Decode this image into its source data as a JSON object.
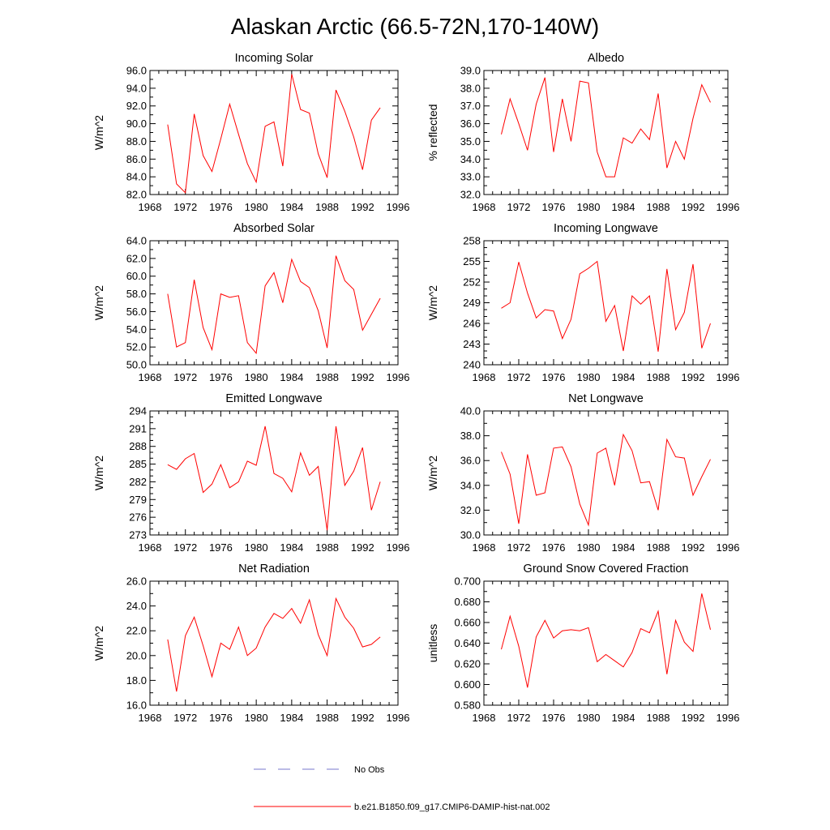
{
  "figure": {
    "title": "Alaskan Arctic (66.5-72N,170-140W)"
  },
  "legend": {
    "items": [
      {
        "label": "No Obs",
        "color": "#7777cc",
        "dashed": true
      },
      {
        "label": "b.e21.B1850.f09_g17.CMIP6-DAMIP-hist-nat.002",
        "color": "#ff0000",
        "dashed": false
      }
    ]
  },
  "chart_data": [
    {
      "type": "line",
      "title": "Incoming Solar",
      "ylabel": "W/m^2",
      "xlim": [
        1968,
        1996
      ],
      "xticks": [
        "1968",
        "1972",
        "1976",
        "1980",
        "1984",
        "1988",
        "1992",
        "1996"
      ],
      "ylim": [
        82,
        96
      ],
      "yticks": [
        "82.0",
        "84.0",
        "86.0",
        "88.0",
        "90.0",
        "92.0",
        "94.0",
        "96.0"
      ],
      "series": [
        {
          "color": "#ff0000",
          "x": [
            1970,
            1971,
            1972,
            1973,
            1974,
            1975,
            1976,
            1977,
            1978,
            1979,
            1980,
            1981,
            1982,
            1983,
            1984,
            1985,
            1986,
            1987,
            1988,
            1989,
            1990,
            1991,
            1992,
            1993,
            1994
          ],
          "y": [
            89.9,
            83.2,
            82.2,
            91.1,
            86.4,
            84.6,
            88.3,
            92.2,
            88.8,
            85.5,
            83.4,
            89.7,
            90.2,
            85.2,
            95.6,
            91.6,
            91.2,
            86.6,
            83.9,
            93.8,
            91.4,
            88.5,
            84.8,
            90.4,
            91.8
          ]
        }
      ]
    },
    {
      "type": "line",
      "title": "Albedo",
      "ylabel": "% reflected",
      "xlim": [
        1968,
        1996
      ],
      "xticks": [
        "1968",
        "1972",
        "1976",
        "1980",
        "1984",
        "1988",
        "1992",
        "1996"
      ],
      "ylim": [
        32,
        39
      ],
      "yticks": [
        "32.0",
        "33.0",
        "34.0",
        "35.0",
        "36.0",
        "37.0",
        "38.0",
        "39.0"
      ],
      "series": [
        {
          "color": "#ff0000",
          "x": [
            1970,
            1971,
            1972,
            1973,
            1974,
            1975,
            1976,
            1977,
            1978,
            1979,
            1980,
            1981,
            1982,
            1983,
            1984,
            1985,
            1986,
            1987,
            1988,
            1989,
            1990,
            1991,
            1992,
            1993,
            1994
          ],
          "y": [
            35.4,
            37.4,
            36.0,
            34.5,
            37.1,
            38.6,
            34.4,
            37.4,
            35.0,
            38.4,
            38.3,
            34.4,
            33.0,
            33.0,
            35.2,
            34.9,
            35.7,
            35.1,
            37.7,
            33.5,
            35.0,
            34.0,
            36.3,
            38.2,
            37.2
          ]
        }
      ]
    },
    {
      "type": "line",
      "title": "Absorbed Solar",
      "ylabel": "W/m^2",
      "xlim": [
        1968,
        1996
      ],
      "xticks": [
        "1968",
        "1972",
        "1976",
        "1980",
        "1984",
        "1988",
        "1992",
        "1996"
      ],
      "ylim": [
        50,
        64
      ],
      "yticks": [
        "50.0",
        "52.0",
        "54.0",
        "56.0",
        "58.0",
        "60.0",
        "62.0",
        "64.0"
      ],
      "series": [
        {
          "color": "#ff0000",
          "x": [
            1970,
            1971,
            1972,
            1973,
            1974,
            1975,
            1976,
            1977,
            1978,
            1979,
            1980,
            1981,
            1982,
            1983,
            1984,
            1985,
            1986,
            1987,
            1988,
            1989,
            1990,
            1991,
            1992,
            1993,
            1994
          ],
          "y": [
            58.0,
            52.0,
            52.5,
            59.6,
            54.2,
            51.7,
            58.0,
            57.6,
            57.8,
            52.5,
            51.3,
            58.9,
            60.4,
            57.0,
            61.9,
            59.4,
            58.7,
            56.1,
            51.9,
            62.3,
            59.5,
            58.5,
            53.9,
            55.7,
            57.5
          ]
        }
      ]
    },
    {
      "type": "line",
      "title": "Incoming Longwave",
      "ylabel": "W/m^2",
      "xlim": [
        1968,
        1996
      ],
      "xticks": [
        "1968",
        "1972",
        "1976",
        "1980",
        "1984",
        "1988",
        "1992",
        "1996"
      ],
      "ylim": [
        240,
        258
      ],
      "yticks": [
        "240",
        "243",
        "246",
        "249",
        "252",
        "255",
        "258"
      ],
      "series": [
        {
          "color": "#ff0000",
          "x": [
            1970,
            1971,
            1972,
            1973,
            1974,
            1975,
            1976,
            1977,
            1978,
            1979,
            1980,
            1981,
            1982,
            1983,
            1984,
            1985,
            1986,
            1987,
            1988,
            1989,
            1990,
            1991,
            1992,
            1993,
            1994
          ],
          "y": [
            248.2,
            249.0,
            254.9,
            250.4,
            246.8,
            248.0,
            247.8,
            243.8,
            246.6,
            253.2,
            254.0,
            255.0,
            246.3,
            248.6,
            242.0,
            250.0,
            248.8,
            250.0,
            241.9,
            253.9,
            245.1,
            247.6,
            254.6,
            242.4,
            246.0
          ]
        }
      ]
    },
    {
      "type": "line",
      "title": "Emitted Longwave",
      "ylabel": "W/m^2",
      "xlim": [
        1968,
        1996
      ],
      "xticks": [
        "1968",
        "1972",
        "1976",
        "1980",
        "1984",
        "1988",
        "1992",
        "1996"
      ],
      "ylim": [
        273,
        294
      ],
      "yticks": [
        "273",
        "276",
        "279",
        "282",
        "285",
        "288",
        "291",
        "294"
      ],
      "series": [
        {
          "color": "#ff0000",
          "x": [
            1970,
            1971,
            1972,
            1973,
            1974,
            1975,
            1976,
            1977,
            1978,
            1979,
            1980,
            1981,
            1982,
            1983,
            1984,
            1985,
            1986,
            1987,
            1988,
            1989,
            1990,
            1991,
            1992,
            1993,
            1994
          ],
          "y": [
            284.9,
            284.1,
            285.9,
            286.8,
            280.2,
            281.6,
            284.9,
            281.0,
            282.0,
            285.5,
            284.8,
            291.4,
            283.4,
            282.6,
            280.3,
            286.9,
            283.1,
            284.6,
            273.8,
            291.4,
            281.4,
            283.8,
            287.8,
            277.2,
            282.0
          ]
        }
      ]
    },
    {
      "type": "line",
      "title": "Net Longwave",
      "ylabel": "W/m^2",
      "xlim": [
        1968,
        1996
      ],
      "xticks": [
        "1968",
        "1972",
        "1976",
        "1980",
        "1984",
        "1988",
        "1992",
        "1996"
      ],
      "ylim": [
        30,
        40
      ],
      "yticks": [
        "30.0",
        "32.0",
        "34.0",
        "36.0",
        "38.0",
        "40.0"
      ],
      "series": [
        {
          "color": "#ff0000",
          "x": [
            1970,
            1971,
            1972,
            1973,
            1974,
            1975,
            1976,
            1977,
            1978,
            1979,
            1980,
            1981,
            1982,
            1983,
            1984,
            1985,
            1986,
            1987,
            1988,
            1989,
            1990,
            1991,
            1992,
            1993,
            1994
          ],
          "y": [
            36.7,
            34.9,
            30.9,
            36.5,
            33.2,
            33.4,
            37.0,
            37.1,
            35.5,
            32.5,
            30.8,
            36.6,
            37.0,
            34.0,
            38.1,
            36.8,
            34.2,
            34.3,
            32.0,
            37.7,
            36.3,
            36.2,
            33.2,
            34.7,
            36.1
          ]
        }
      ]
    },
    {
      "type": "line",
      "title": "Net Radiation",
      "ylabel": "W/m^2",
      "xlim": [
        1968,
        1996
      ],
      "xticks": [
        "1968",
        "1972",
        "1976",
        "1980",
        "1984",
        "1988",
        "1992",
        "1996"
      ],
      "ylim": [
        16,
        26
      ],
      "yticks": [
        "16.0",
        "18.0",
        "20.0",
        "22.0",
        "24.0",
        "26.0"
      ],
      "series": [
        {
          "color": "#ff0000",
          "x": [
            1970,
            1971,
            1972,
            1973,
            1974,
            1975,
            1976,
            1977,
            1978,
            1979,
            1980,
            1981,
            1982,
            1983,
            1984,
            1985,
            1986,
            1987,
            1988,
            1989,
            1990,
            1991,
            1992,
            1993,
            1994
          ],
          "y": [
            21.3,
            17.1,
            21.6,
            23.1,
            20.8,
            18.3,
            21.0,
            20.5,
            22.3,
            20.0,
            20.6,
            22.3,
            23.4,
            23.0,
            23.8,
            22.6,
            24.5,
            21.7,
            20.0,
            24.6,
            23.1,
            22.2,
            20.7,
            20.9,
            21.5
          ]
        }
      ]
    },
    {
      "type": "line",
      "title": "Ground Snow Covered Fraction",
      "ylabel": "unitless",
      "xlim": [
        1968,
        1996
      ],
      "xticks": [
        "1968",
        "1972",
        "1976",
        "1980",
        "1984",
        "1988",
        "1992",
        "1996"
      ],
      "ylim": [
        0.58,
        0.7
      ],
      "yticks": [
        "0.580",
        "0.600",
        "0.620",
        "0.640",
        "0.660",
        "0.680",
        "0.700"
      ],
      "series": [
        {
          "color": "#ff0000",
          "x": [
            1970,
            1971,
            1972,
            1973,
            1974,
            1975,
            1976,
            1977,
            1978,
            1979,
            1980,
            1981,
            1982,
            1983,
            1984,
            1985,
            1986,
            1987,
            1988,
            1989,
            1990,
            1991,
            1992,
            1993,
            1994
          ],
          "y": [
            0.634,
            0.666,
            0.637,
            0.597,
            0.646,
            0.662,
            0.645,
            0.652,
            0.653,
            0.652,
            0.655,
            0.622,
            0.629,
            0.623,
            0.617,
            0.631,
            0.654,
            0.65,
            0.671,
            0.61,
            0.662,
            0.641,
            0.632,
            0.688,
            0.653
          ]
        }
      ]
    }
  ]
}
